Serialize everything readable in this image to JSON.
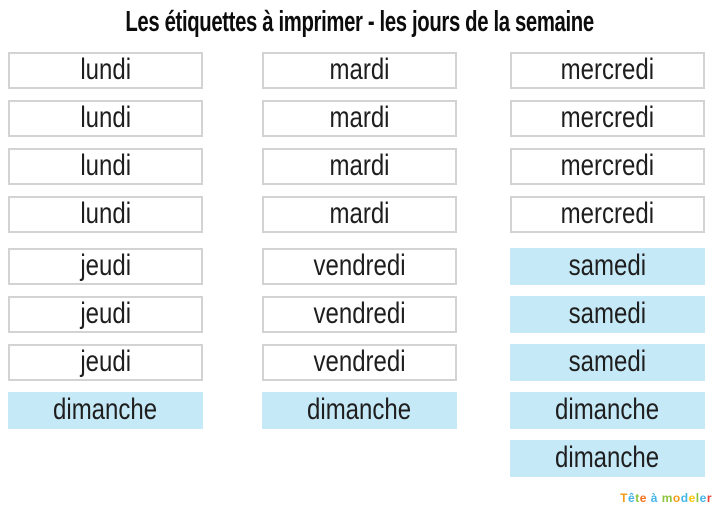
{
  "page": {
    "title": "Les étiquettes à imprimer - les jours de la semaine"
  },
  "colors": {
    "highlight_blue": "#c6e9f7",
    "box_border": "#d3d3d3",
    "text": "#1e1e1e"
  },
  "labels": {
    "columns": [
      {
        "name": "labels-column-1",
        "items": [
          {
            "text": "lundi",
            "variant": "outlined"
          },
          {
            "text": "lundi",
            "variant": "outlined"
          },
          {
            "text": "lundi",
            "variant": "outlined"
          },
          {
            "text": "lundi",
            "variant": "outlined"
          },
          {
            "text": "jeudi",
            "variant": "outlined"
          },
          {
            "text": "jeudi",
            "variant": "outlined"
          },
          {
            "text": "jeudi",
            "variant": "outlined"
          },
          {
            "text": "dimanche",
            "variant": "highlighted"
          }
        ]
      },
      {
        "name": "labels-column-2",
        "items": [
          {
            "text": "mardi",
            "variant": "outlined"
          },
          {
            "text": "mardi",
            "variant": "outlined"
          },
          {
            "text": "mardi",
            "variant": "outlined"
          },
          {
            "text": "mardi",
            "variant": "outlined"
          },
          {
            "text": "vendredi",
            "variant": "outlined"
          },
          {
            "text": "vendredi",
            "variant": "outlined"
          },
          {
            "text": "vendredi",
            "variant": "outlined"
          },
          {
            "text": "dimanche",
            "variant": "highlighted"
          }
        ]
      },
      {
        "name": "labels-column-3",
        "items": [
          {
            "text": "mercredi",
            "variant": "outlined"
          },
          {
            "text": "mercredi",
            "variant": "outlined"
          },
          {
            "text": "mercredi",
            "variant": "outlined"
          },
          {
            "text": "mercredi",
            "variant": "outlined"
          },
          {
            "text": "samedi",
            "variant": "highlighted"
          },
          {
            "text": "samedi",
            "variant": "highlighted"
          },
          {
            "text": "samedi",
            "variant": "highlighted"
          },
          {
            "text": "dimanche",
            "variant": "highlighted"
          },
          {
            "text": "dimanche",
            "variant": "highlighted"
          }
        ]
      }
    ]
  },
  "logo": {
    "text": "Tête à modeler",
    "letters": [
      {
        "ch": "T",
        "color": "#f59b18"
      },
      {
        "ch": "ê",
        "color": "#45b5e8"
      },
      {
        "ch": "t",
        "color": "#8dc63f"
      },
      {
        "ch": "e",
        "color": "#f3701b"
      },
      {
        "ch": " ",
        "color": "#000000"
      },
      {
        "ch": "à",
        "color": "#45b5e8"
      },
      {
        "ch": " ",
        "color": "#000000"
      },
      {
        "ch": "m",
        "color": "#8dc63f"
      },
      {
        "ch": "o",
        "color": "#f59b18"
      },
      {
        "ch": "d",
        "color": "#45b5e8"
      },
      {
        "ch": "e",
        "color": "#f7c608"
      },
      {
        "ch": "l",
        "color": "#8dc63f"
      },
      {
        "ch": "e",
        "color": "#45b5e8"
      },
      {
        "ch": "r",
        "color": "#ef4136"
      }
    ]
  }
}
